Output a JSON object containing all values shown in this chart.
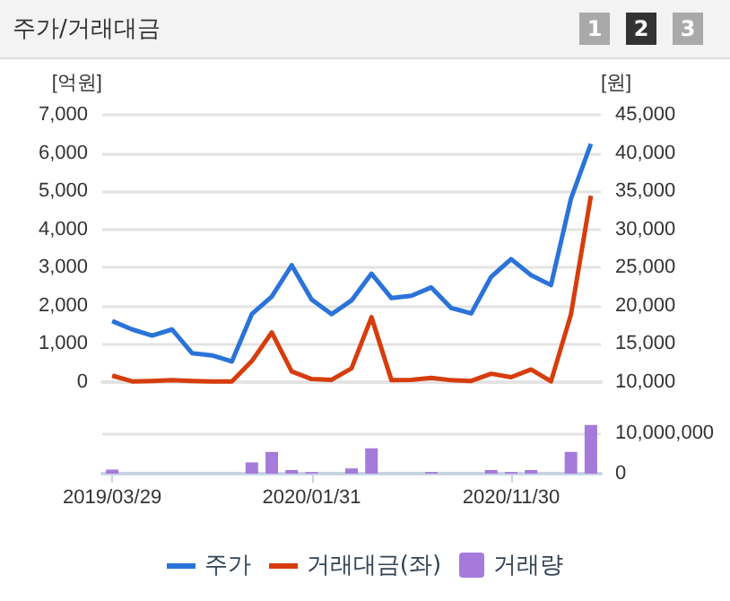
{
  "chart_data": [
    {
      "type": "line",
      "title": "주가/거래대금",
      "annotations": [
        "1",
        "2",
        "3"
      ],
      "ylabel": "[억원]",
      "y2label": "[원]",
      "categories": [
        "2019/03/29",
        null,
        null,
        null,
        null,
        null,
        null,
        null,
        null,
        null,
        "2020/01/31",
        null,
        null,
        null,
        null,
        null,
        null,
        null,
        null,
        null,
        "2020/11/30",
        null,
        null,
        null,
        null
      ],
      "series": [
        {
          "name": "주가",
          "axis": "y2",
          "color": "#2a73d9",
          "values": [
            18000,
            16900,
            16100,
            16900,
            13800,
            13500,
            12700,
            18900,
            21200,
            25300,
            20800,
            18900,
            20700,
            24200,
            21000,
            21300,
            22400,
            19700,
            19000,
            23800,
            26100,
            24000,
            22700,
            34000,
            41200
          ]
        },
        {
          "name": "거래대금(좌)",
          "axis": "y",
          "color": "#d63d0c",
          "values": [
            170,
            20,
            30,
            50,
            30,
            20,
            20,
            550,
            1300,
            280,
            80,
            60,
            360,
            1700,
            50,
            60,
            110,
            50,
            30,
            220,
            130,
            330,
            20,
            1770,
            4880
          ]
        }
      ],
      "ylim": [
        0,
        7000
      ],
      "yticks": [
        {
          "value": 0,
          "label": "0"
        },
        {
          "value": 1000,
          "label": "1,000"
        },
        {
          "value": 2000,
          "label": "2,000"
        },
        {
          "value": 3000,
          "label": "3,000"
        },
        {
          "value": 4000,
          "label": "4,000"
        },
        {
          "value": 5000,
          "label": "5,000"
        },
        {
          "value": 6000,
          "label": "6,000"
        },
        {
          "value": 7000,
          "label": "7,000"
        }
      ],
      "y2lim": [
        10000,
        45000
      ],
      "y2ticks": [
        {
          "value": 10000,
          "label": "10,000"
        },
        {
          "value": 15000,
          "label": "15,000"
        },
        {
          "value": 20000,
          "label": "20,000"
        },
        {
          "value": 25000,
          "label": "25,000"
        },
        {
          "value": 30000,
          "label": "30,000"
        },
        {
          "value": 35000,
          "label": "35,000"
        },
        {
          "value": 40000,
          "label": "40,000"
        },
        {
          "value": 45000,
          "label": "45,000"
        }
      ],
      "tick_labels": "y",
      "grid": "y",
      "legend": "bottom",
      "marker": "none"
    },
    {
      "type": "bar",
      "categories": [
        "2019/03/29",
        null,
        null,
        null,
        null,
        null,
        null,
        null,
        null,
        null,
        "2020/01/31",
        null,
        null,
        null,
        null,
        null,
        null,
        null,
        null,
        null,
        "2020/11/30",
        null,
        null,
        null,
        null
      ],
      "series": [
        {
          "name": "거래량",
          "axis": "y2",
          "color": "#a57adb",
          "values": [
            1000000,
            0,
            0,
            0,
            0,
            0,
            0,
            2800000,
            5400000,
            900000,
            400000,
            0,
            1300000,
            6300000,
            0,
            0,
            400000,
            0,
            0,
            900000,
            400000,
            900000,
            0,
            5400000,
            12100000
          ]
        }
      ],
      "y2lim": [
        0,
        12500000
      ],
      "y2ticks": [
        {
          "value": 0,
          "label": "0"
        },
        {
          "value": 10000000,
          "label": "10,000,000"
        }
      ],
      "grid": "y",
      "legend": "bottom"
    }
  ]
}
